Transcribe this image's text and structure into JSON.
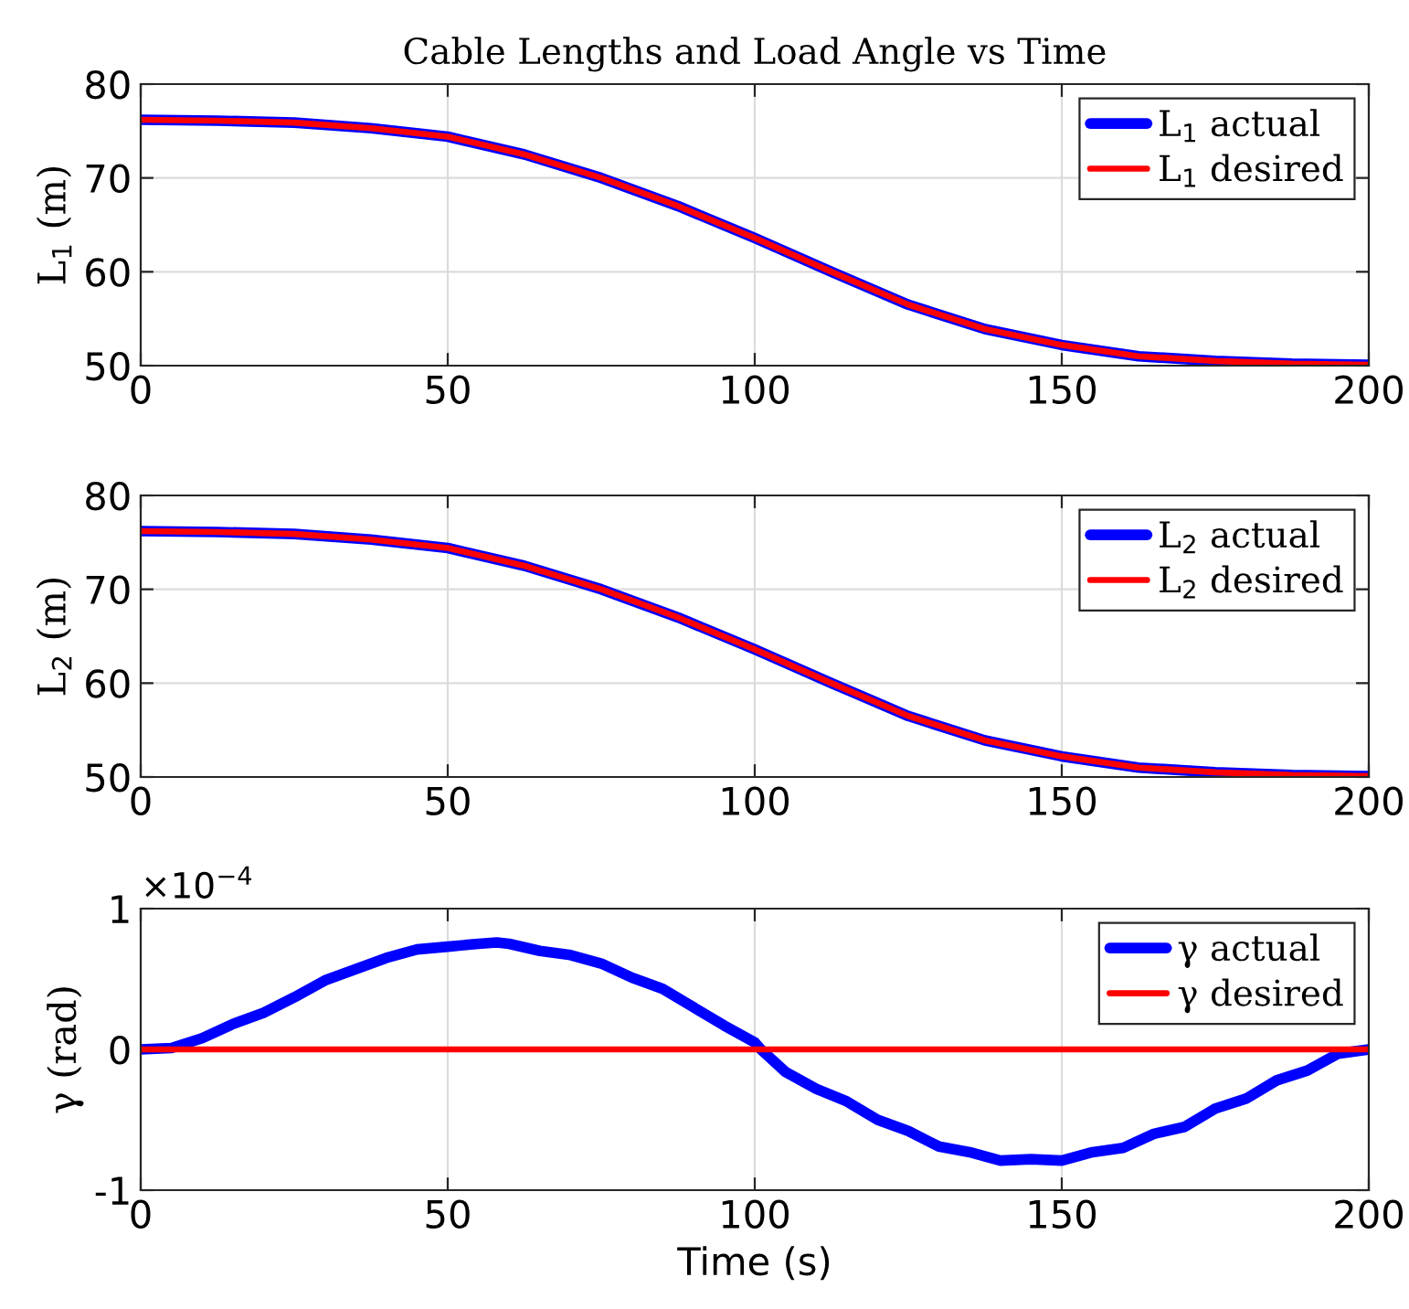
{
  "chart_data": [
    {
      "type": "line",
      "title": "Cable Lengths and Load Angle vs Time",
      "ylabel": "L$_{1}$ (m)",
      "xlim": [
        0,
        200
      ],
      "ylim": [
        50,
        80
      ],
      "xticks": [
        0,
        50,
        100,
        150,
        200
      ],
      "yticks": [
        50,
        60,
        70,
        80
      ],
      "grid": true,
      "legend": "top right",
      "series": [
        {
          "name": "L$_{1}$ actual",
          "color": "#0000ff",
          "x": [
            0,
            12.5,
            25,
            37.5,
            50,
            62.5,
            75,
            87.5,
            100,
            112.5,
            125,
            137.5,
            150,
            162.5,
            175,
            187.5,
            200
          ],
          "values": [
            76.2,
            76.1,
            75.9,
            75.3,
            74.4,
            72.5,
            70.0,
            67.0,
            63.6,
            60.0,
            56.5,
            53.9,
            52.2,
            51.0,
            50.5,
            50.2,
            50.1
          ]
        },
        {
          "name": "L$_{1}$ desired",
          "color": "#ff0000",
          "x": [
            0,
            12.5,
            25,
            37.5,
            50,
            62.5,
            75,
            87.5,
            100,
            112.5,
            125,
            137.5,
            150,
            162.5,
            175,
            187.5,
            200
          ],
          "values": [
            76.2,
            76.1,
            75.9,
            75.3,
            74.4,
            72.5,
            70.0,
            67.0,
            63.6,
            60.0,
            56.5,
            53.9,
            52.2,
            51.0,
            50.5,
            50.2,
            50.1
          ]
        }
      ]
    },
    {
      "type": "line",
      "ylabel": "L$_{2}$ (m)",
      "xlim": [
        0,
        200
      ],
      "ylim": [
        50,
        80
      ],
      "xticks": [
        0,
        50,
        100,
        150,
        200
      ],
      "yticks": [
        50,
        60,
        70,
        80
      ],
      "grid": true,
      "legend": "top right",
      "series": [
        {
          "name": "L$_{2}$ actual",
          "color": "#0000ff",
          "x": [
            0,
            12.5,
            25,
            37.5,
            50,
            62.5,
            75,
            87.5,
            100,
            112.5,
            125,
            137.5,
            150,
            162.5,
            175,
            187.5,
            200
          ],
          "values": [
            76.2,
            76.1,
            75.9,
            75.3,
            74.4,
            72.5,
            70.0,
            67.0,
            63.6,
            60.0,
            56.5,
            53.9,
            52.2,
            51.0,
            50.5,
            50.2,
            50.1
          ]
        },
        {
          "name": "L$_{2}$ desired",
          "color": "#ff0000",
          "x": [
            0,
            12.5,
            25,
            37.5,
            50,
            62.5,
            75,
            87.5,
            100,
            112.5,
            125,
            137.5,
            150,
            162.5,
            175,
            187.5,
            200
          ],
          "values": [
            76.2,
            76.1,
            75.9,
            75.3,
            74.4,
            72.5,
            70.0,
            67.0,
            63.6,
            60.0,
            56.5,
            53.9,
            52.2,
            51.0,
            50.5,
            50.2,
            50.1
          ]
        }
      ]
    },
    {
      "type": "line",
      "ylabel": "γ (rad)",
      "xlabel": "Time (s)",
      "annotations": [
        "×10$^{−4}$"
      ],
      "xlim": [
        0,
        200
      ],
      "ylim": [
        -1,
        1
      ],
      "xticks": [
        0,
        50,
        100,
        150,
        200
      ],
      "yticks": [
        -1,
        0,
        1
      ],
      "grid": true,
      "legend": "top right",
      "series": [
        {
          "name": "γ actual",
          "color": "#0000ff",
          "x": [
            0,
            5,
            10,
            15,
            20,
            25,
            30,
            35,
            40,
            45,
            50,
            55,
            58,
            60,
            65,
            70,
            75,
            80,
            85,
            90,
            95,
            100,
            101,
            105,
            110,
            115,
            120,
            125,
            130,
            135,
            140,
            145,
            150,
            155,
            160,
            165,
            170,
            175,
            180,
            185,
            190,
            195,
            200
          ],
          "values": [
            0,
            0.01,
            0.08,
            0.18,
            0.26,
            0.37,
            0.49,
            0.57,
            0.65,
            0.71,
            0.73,
            0.75,
            0.76,
            0.75,
            0.7,
            0.67,
            0.61,
            0.51,
            0.43,
            0.3,
            0.17,
            0.05,
            0.0,
            -0.16,
            -0.28,
            -0.37,
            -0.5,
            -0.58,
            -0.69,
            -0.73,
            -0.79,
            -0.78,
            -0.79,
            -0.73,
            -0.7,
            -0.6,
            -0.55,
            -0.42,
            -0.35,
            -0.22,
            -0.15,
            -0.03,
            0
          ]
        },
        {
          "name": "γ desired",
          "color": "#ff0000",
          "x": [
            0,
            200
          ],
          "values": [
            0,
            0
          ]
        }
      ]
    }
  ]
}
